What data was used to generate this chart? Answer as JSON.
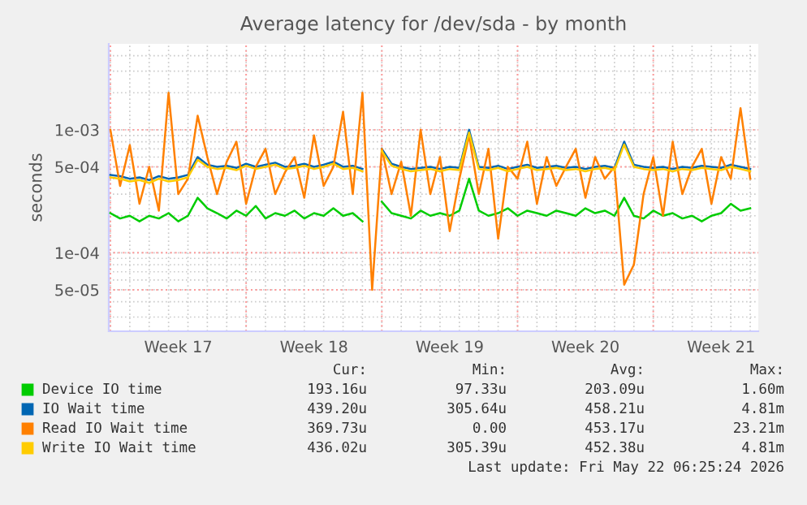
{
  "chart_data": {
    "type": "line",
    "title": "Average latency for /dev/sda - by month",
    "ylabel": "seconds",
    "x": [
      "2026-04-20T00:00",
      "2026-04-20T12:00",
      "2026-04-21T00:00",
      "2026-04-21T12:00",
      "2026-04-22T00:00",
      "2026-04-22T12:00",
      "2026-04-23T00:00",
      "2026-04-23T12:00",
      "2026-04-24T00:00",
      "2026-04-24T12:00",
      "2026-04-25T00:00",
      "2026-04-25T12:00",
      "2026-04-26T00:00",
      "2026-04-26T12:00",
      "2026-04-27T00:00",
      "2026-04-27T12:00",
      "2026-04-28T00:00",
      "2026-04-28T12:00",
      "2026-04-29T00:00",
      "2026-04-29T12:00",
      "2026-04-30T00:00",
      "2026-04-30T12:00",
      "2026-05-01T00:00",
      "2026-05-01T12:00",
      "2026-05-02T00:00",
      "2026-05-02T12:00",
      "2026-05-03T00:00",
      "2026-05-03T12:00",
      "2026-05-04T00:00",
      "2026-05-04T12:00",
      "2026-05-05T00:00",
      "2026-05-05T12:00",
      "2026-05-06T00:00",
      "2026-05-06T12:00",
      "2026-05-07T00:00",
      "2026-05-07T12:00",
      "2026-05-08T00:00",
      "2026-05-08T12:00",
      "2026-05-09T00:00",
      "2026-05-09T12:00",
      "2026-05-10T00:00",
      "2026-05-10T12:00",
      "2026-05-11T00:00",
      "2026-05-11T12:00",
      "2026-05-12T00:00",
      "2026-05-12T12:00",
      "2026-05-13T00:00",
      "2026-05-13T12:00",
      "2026-05-14T00:00",
      "2026-05-14T12:00",
      "2026-05-15T00:00",
      "2026-05-15T12:00",
      "2026-05-16T00:00",
      "2026-05-16T12:00",
      "2026-05-17T00:00",
      "2026-05-17T12:00",
      "2026-05-18T00:00",
      "2026-05-18T12:00",
      "2026-05-19T00:00",
      "2026-05-19T12:00",
      "2026-05-20T00:00",
      "2026-05-20T12:00",
      "2026-05-21T00:00",
      "2026-05-21T12:00",
      "2026-05-22T00:00",
      "2026-05-22T12:00",
      "2026-05-23T00:00"
    ],
    "series": [
      {
        "name": "Device IO time",
        "color": "#00cc00",
        "values": [
          0.00021,
          0.00019,
          0.0002,
          0.00018,
          0.0002,
          0.00019,
          0.00021,
          0.00018,
          0.0002,
          0.00028,
          0.00023,
          0.00021,
          0.00019,
          0.00022,
          0.0002,
          0.00024,
          0.00019,
          0.00021,
          0.0002,
          0.00022,
          0.00019,
          0.00021,
          0.0002,
          0.00023,
          0.0002,
          0.00021,
          0.00018,
          null,
          0.00026,
          0.00021,
          0.0002,
          0.00019,
          0.00022,
          0.0002,
          0.00021,
          0.0002,
          0.00022,
          0.0004,
          0.00022,
          0.0002,
          0.00021,
          0.00023,
          0.0002,
          0.00022,
          0.00021,
          0.0002,
          0.00022,
          0.00021,
          0.0002,
          0.00023,
          0.00021,
          0.00022,
          0.0002,
          0.00028,
          0.0002,
          0.00019,
          0.00022,
          0.0002,
          0.00021,
          0.00019,
          0.0002,
          0.00018,
          0.0002,
          0.00021,
          0.00025,
          0.00022,
          0.00023
        ]
      },
      {
        "name": "IO Wait time",
        "color": "#0066b3",
        "values": [
          0.00043,
          0.00042,
          0.0004,
          0.00041,
          0.00039,
          0.00042,
          0.0004,
          0.00041,
          0.00043,
          0.0006,
          0.00052,
          0.0005,
          0.00051,
          0.00049,
          0.00053,
          0.0005,
          0.00052,
          0.00054,
          0.0005,
          0.00051,
          0.00053,
          0.0005,
          0.00052,
          0.00055,
          0.0005,
          0.00051,
          0.00048,
          null,
          0.0007,
          0.00053,
          0.0005,
          0.00048,
          0.00049,
          0.0005,
          0.00048,
          0.0005,
          0.00049,
          0.001,
          0.0005,
          0.00049,
          0.00051,
          0.00048,
          0.0005,
          0.00052,
          0.00049,
          0.0005,
          0.00051,
          0.00049,
          0.0005,
          0.00048,
          0.0005,
          0.00051,
          0.00049,
          0.0008,
          0.00052,
          0.0005,
          0.00049,
          0.0005,
          0.00048,
          0.0005,
          0.00049,
          0.00051,
          0.0005,
          0.00049,
          0.00052,
          0.0005,
          0.00048
        ]
      },
      {
        "name": "Read IO Wait time",
        "color": "#ff8000",
        "values": [
          0.001,
          0.00035,
          0.00075,
          0.00025,
          0.0005,
          0.00022,
          0.002,
          0.0003,
          0.0004,
          0.0013,
          0.0006,
          0.0003,
          0.00055,
          0.0008,
          0.00025,
          0.0005,
          0.0007,
          0.0003,
          0.00045,
          0.0006,
          0.00028,
          0.0009,
          0.00035,
          0.0005,
          0.0014,
          0.0003,
          0.002,
          5e-05,
          0.0007,
          0.0003,
          0.00055,
          0.0002,
          0.001,
          0.0003,
          0.0006,
          0.00015,
          0.0004,
          0.0009,
          0.0003,
          0.0007,
          0.00013,
          0.0005,
          0.0004,
          0.0008,
          0.00025,
          0.0006,
          0.00035,
          0.0005,
          0.0007,
          0.00028,
          0.0006,
          0.0004,
          0.0005,
          5.5e-05,
          8e-05,
          0.0003,
          0.0006,
          0.0002,
          0.0008,
          0.0003,
          0.0005,
          0.0007,
          0.00025,
          0.0006,
          0.0004,
          0.0015,
          0.0004
        ]
      },
      {
        "name": "Write IO Wait time",
        "color": "#ffcc00",
        "values": [
          0.00041,
          0.0004,
          0.00038,
          0.00039,
          0.00037,
          0.0004,
          0.00038,
          0.00039,
          0.00041,
          0.00057,
          0.0005,
          0.00048,
          0.00049,
          0.00047,
          0.00051,
          0.00048,
          0.0005,
          0.00052,
          0.00048,
          0.00049,
          0.00051,
          0.00048,
          0.0005,
          0.00053,
          0.00048,
          0.00049,
          0.00046,
          null,
          0.00067,
          0.00051,
          0.00048,
          0.00046,
          0.00047,
          0.00048,
          0.00046,
          0.00048,
          0.00047,
          0.00095,
          0.00048,
          0.00047,
          0.00049,
          0.00046,
          0.00048,
          0.0005,
          0.00047,
          0.00048,
          0.00049,
          0.00047,
          0.00048,
          0.00046,
          0.00048,
          0.00049,
          0.00047,
          0.00076,
          0.0005,
          0.00048,
          0.00047,
          0.00048,
          0.00046,
          0.00048,
          0.00047,
          0.00049,
          0.00048,
          0.00047,
          0.0005,
          0.00048,
          0.00046
        ]
      }
    ],
    "log": "y",
    "ylim": [
      2.3e-05,
      0.005
    ],
    "yticks": [
      {
        "value": 5e-05,
        "label": "5e-05"
      },
      {
        "value": 0.0001,
        "label": "1e-04"
      },
      {
        "value": 0.0005,
        "label": "5e-04"
      },
      {
        "value": 0.001,
        "label": "1e-03"
      }
    ],
    "xlim": [
      "2026-04-19T22:00",
      "2026-05-23T10:00"
    ],
    "xticks": [
      {
        "value": "2026-04-20T00:00",
        "label": null
      },
      {
        "value": "2026-04-23T12:00",
        "label": "Week 17"
      },
      {
        "value": "2026-04-27T00:00",
        "label": null
      },
      {
        "value": "2026-04-30T12:00",
        "label": "Week 18"
      },
      {
        "value": "2026-05-04T00:00",
        "label": null
      },
      {
        "value": "2026-05-07T12:00",
        "label": "Week 19"
      },
      {
        "value": "2026-05-11T00:00",
        "label": null
      },
      {
        "value": "2026-05-14T12:00",
        "label": "Week 20"
      },
      {
        "value": "2026-05-18T00:00",
        "label": null
      },
      {
        "value": "2026-05-21T12:00",
        "label": "Week 21"
      }
    ],
    "grid": true,
    "legend": "bottom",
    "marker": "none",
    "line_style": "solid",
    "annotations": [
      "Cur:",
      "Min:",
      "Avg:",
      "Max:",
      "193.16u",
      "97.33u",
      "203.09u",
      "1.60m",
      "439.20u",
      "305.64u",
      "458.21u",
      "4.81m",
      "369.73u",
      "0.00",
      "453.17u",
      "23.21m",
      "436.02u",
      "305.39u",
      "452.38u",
      "4.81m",
      "Last update: Fri May 22 06:25:24 2026"
    ]
  }
}
